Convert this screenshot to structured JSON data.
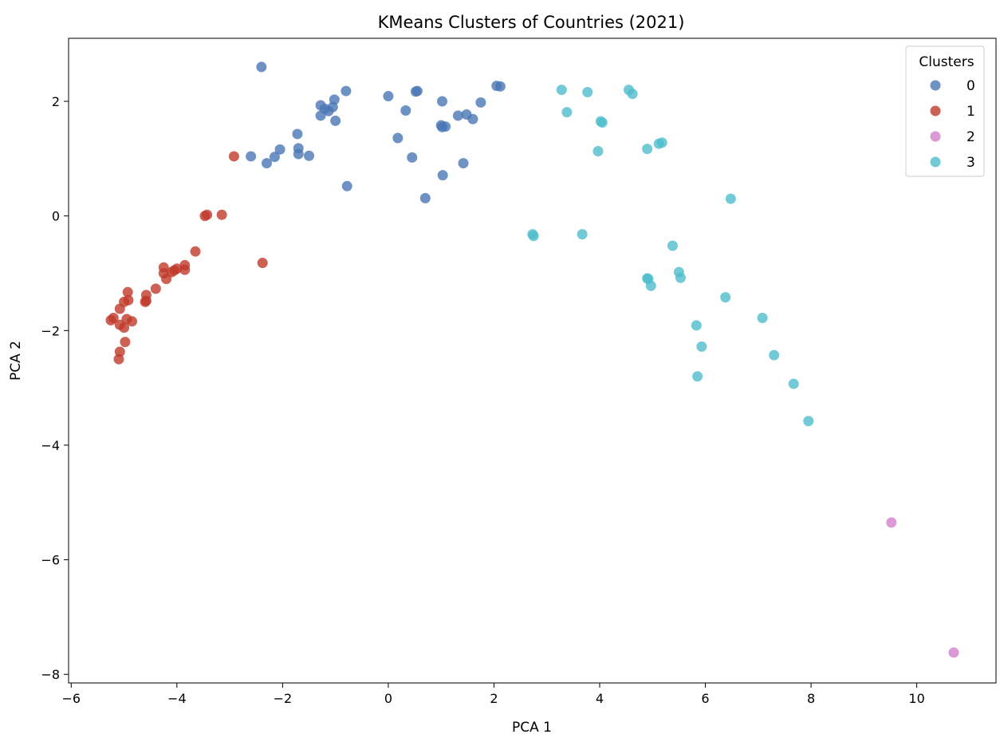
{
  "chart_data": {
    "type": "scatter",
    "title": "KMeans Clusters of Countries (2021)",
    "xlabel": "PCA 1",
    "ylabel": "PCA 2",
    "xlim": [
      -6.05,
      11.5
    ],
    "ylim": [
      -8.15,
      3.1
    ],
    "xticks": [
      -6,
      -4,
      -2,
      0,
      2,
      4,
      6,
      8,
      10
    ],
    "yticks": [
      2,
      0,
      -2,
      -4,
      -6,
      -8
    ],
    "xtick_labels": [
      "−6",
      "−4",
      "−2",
      "0",
      "2",
      "4",
      "6",
      "8",
      "10"
    ],
    "ytick_labels": [
      "2",
      "0",
      "−2",
      "−4",
      "−6",
      "−8"
    ],
    "grid": false,
    "legend": {
      "title": "Clusters",
      "placement": "top-right"
    },
    "series": [
      {
        "name": "0",
        "color": "#4a77b4",
        "points": [
          [
            -2.4,
            2.6
          ],
          [
            -0.8,
            2.18
          ],
          [
            -1.28,
            1.93
          ],
          [
            -1.2,
            1.87
          ],
          [
            -1.13,
            1.83
          ],
          [
            -1.05,
            1.9
          ],
          [
            -1.02,
            2.03
          ],
          [
            -1.28,
            1.75
          ],
          [
            -1.0,
            1.66
          ],
          [
            -1.72,
            1.43
          ],
          [
            -1.7,
            1.18
          ],
          [
            -1.7,
            1.08
          ],
          [
            -1.5,
            1.05
          ],
          [
            -2.05,
            1.16
          ],
          [
            -2.15,
            1.03
          ],
          [
            -2.3,
            0.92
          ],
          [
            -2.6,
            1.04
          ],
          [
            -0.78,
            0.52
          ],
          [
            0.0,
            2.09
          ],
          [
            0.52,
            2.17
          ],
          [
            0.55,
            2.18
          ],
          [
            1.02,
            2.0
          ],
          [
            0.33,
            1.84
          ],
          [
            0.18,
            1.36
          ],
          [
            0.45,
            1.02
          ],
          [
            0.7,
            0.31
          ],
          [
            1.0,
            1.58
          ],
          [
            1.08,
            1.56
          ],
          [
            1.02,
            1.55
          ],
          [
            1.32,
            1.75
          ],
          [
            1.48,
            1.77
          ],
          [
            1.6,
            1.69
          ],
          [
            1.75,
            1.98
          ],
          [
            1.42,
            0.92
          ],
          [
            1.03,
            0.71
          ],
          [
            2.05,
            2.27
          ],
          [
            2.12,
            2.26
          ]
        ]
      },
      {
        "name": "1",
        "color": "#c0392b",
        "points": [
          [
            -2.92,
            1.04
          ],
          [
            -3.15,
            0.02
          ],
          [
            -3.43,
            0.02
          ],
          [
            -3.47,
            0.0
          ],
          [
            -2.38,
            -0.82
          ],
          [
            -3.65,
            -0.62
          ],
          [
            -3.85,
            -0.86
          ],
          [
            -3.85,
            -0.94
          ],
          [
            -4.0,
            -0.92
          ],
          [
            -4.05,
            -0.95
          ],
          [
            -4.1,
            -0.98
          ],
          [
            -4.25,
            -0.9
          ],
          [
            -4.2,
            -1.1
          ],
          [
            -4.25,
            -1.0
          ],
          [
            -4.4,
            -1.27
          ],
          [
            -4.58,
            -1.38
          ],
          [
            -4.58,
            -1.48
          ],
          [
            -4.6,
            -1.5
          ],
          [
            -4.93,
            -1.33
          ],
          [
            -4.92,
            -1.47
          ],
          [
            -5.0,
            -1.5
          ],
          [
            -5.08,
            -1.62
          ],
          [
            -4.85,
            -1.84
          ],
          [
            -4.95,
            -1.8
          ],
          [
            -5.2,
            -1.78
          ],
          [
            -5.25,
            -1.82
          ],
          [
            -5.08,
            -1.9
          ],
          [
            -5.0,
            -1.95
          ],
          [
            -4.98,
            -2.2
          ],
          [
            -5.08,
            -2.37
          ],
          [
            -5.1,
            -2.5
          ]
        ]
      },
      {
        "name": "2",
        "color": "#d27fca",
        "points": [
          [
            9.52,
            -5.35
          ],
          [
            10.7,
            -7.62
          ]
        ]
      },
      {
        "name": "3",
        "color": "#4dbdcc",
        "points": [
          [
            3.28,
            2.2
          ],
          [
            3.77,
            2.16
          ],
          [
            4.55,
            2.2
          ],
          [
            4.62,
            2.13
          ],
          [
            3.38,
            1.81
          ],
          [
            4.02,
            1.65
          ],
          [
            4.05,
            1.63
          ],
          [
            3.97,
            1.13
          ],
          [
            4.9,
            1.17
          ],
          [
            5.12,
            1.26
          ],
          [
            5.18,
            1.28
          ],
          [
            6.48,
            0.3
          ],
          [
            2.73,
            -0.32
          ],
          [
            2.75,
            -0.35
          ],
          [
            3.67,
            -0.32
          ],
          [
            5.38,
            -0.52
          ],
          [
            5.5,
            -0.98
          ],
          [
            5.53,
            -1.08
          ],
          [
            4.9,
            -1.09
          ],
          [
            4.92,
            -1.1
          ],
          [
            4.97,
            -1.22
          ],
          [
            6.38,
            -1.42
          ],
          [
            7.08,
            -1.78
          ],
          [
            5.83,
            -1.91
          ],
          [
            5.93,
            -2.28
          ],
          [
            7.3,
            -2.43
          ],
          [
            5.85,
            -2.8
          ],
          [
            7.67,
            -2.93
          ],
          [
            7.95,
            -3.58
          ]
        ]
      }
    ]
  }
}
